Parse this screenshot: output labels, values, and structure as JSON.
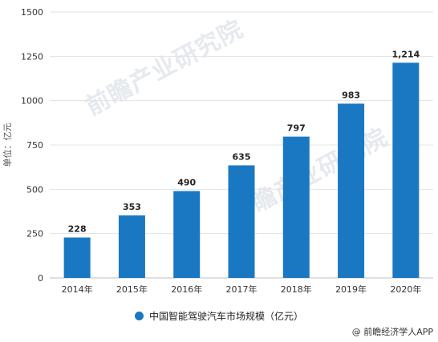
{
  "chart_data": {
    "type": "bar",
    "categories": [
      "2014年",
      "2015年",
      "2016年",
      "2017年",
      "2018年",
      "2019年",
      "2020年"
    ],
    "series": [
      {
        "name": "中国智能驾驶汽车市场规模（亿元）",
        "values": [
          228,
          353,
          490,
          635,
          797,
          983,
          1214
        ]
      }
    ],
    "data_labels": [
      "228",
      "353",
      "490",
      "635",
      "797",
      "983",
      "1,214"
    ],
    "ylabel": "单位：亿元",
    "ylim": [
      0,
      1500
    ],
    "yticks": [
      0,
      250,
      500,
      750,
      1000,
      1250,
      1500
    ],
    "ytick_labels": [
      "0",
      "250",
      "500",
      "750",
      "1000",
      "1250",
      "1500"
    ],
    "grid": true,
    "legend_position": "bottom",
    "bar_color": "#1a78c2"
  },
  "legend_label": "中国智能驾驶汽车市场规模（亿元）",
  "credit": "@ 前瞻经济学人APP",
  "watermark": "前瞻产业研究院"
}
